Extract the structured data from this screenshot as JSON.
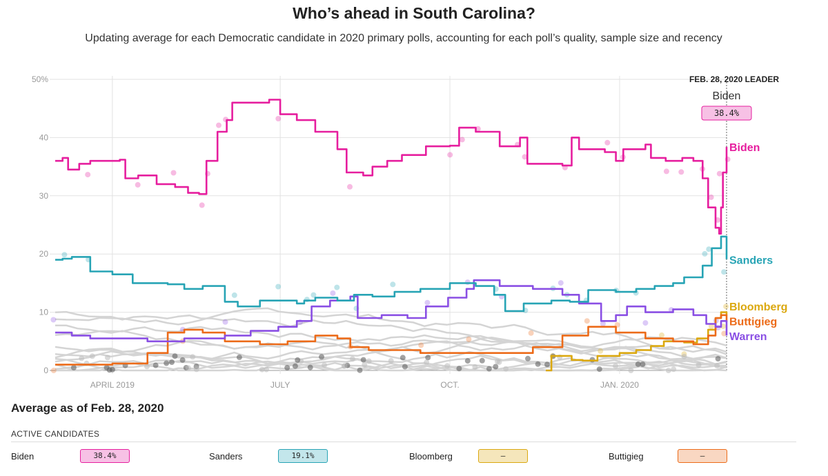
{
  "header": {
    "title": "Who’s ahead in South Carolina?",
    "subtitle": "Updating average for each Democratic candidate in 2020 primary polls, accounting for each poll’s quality, sample size and recency"
  },
  "chart_data": {
    "type": "line",
    "ylim": [
      0,
      50
    ],
    "y_ticks": [
      "50%",
      "40",
      "30",
      "20",
      "10",
      "0"
    ],
    "x_ticks": [
      "APRIL 2019",
      "JULY",
      "OCT.",
      "JAN. 2020"
    ],
    "x_range": [
      "2019-03-01",
      "2020-02-28"
    ],
    "leader": {
      "heading": "FEB. 28, 2020 LEADER",
      "name": "Biden",
      "value": "38.4%"
    },
    "series": [
      {
        "name": "Biden",
        "color": "#e61e9e",
        "points": [
          [
            "2019-03-01",
            36
          ],
          [
            "2019-03-05",
            36.5
          ],
          [
            "2019-03-08",
            34.5
          ],
          [
            "2019-03-14",
            35.5
          ],
          [
            "2019-03-20",
            36
          ],
          [
            "2019-04-05",
            36.2
          ],
          [
            "2019-04-08",
            33
          ],
          [
            "2019-04-15",
            33.5
          ],
          [
            "2019-04-25",
            32
          ],
          [
            "2019-05-05",
            31.5
          ],
          [
            "2019-05-12",
            30.5
          ],
          [
            "2019-05-18",
            30.3
          ],
          [
            "2019-05-22",
            36
          ],
          [
            "2019-05-28",
            41
          ],
          [
            "2019-06-02",
            43
          ],
          [
            "2019-06-05",
            46
          ],
          [
            "2019-06-25",
            46.5
          ],
          [
            "2019-07-01",
            44
          ],
          [
            "2019-07-10",
            43
          ],
          [
            "2019-07-20",
            41
          ],
          [
            "2019-08-01",
            38
          ],
          [
            "2019-08-06",
            34
          ],
          [
            "2019-08-15",
            33.5
          ],
          [
            "2019-08-20",
            35
          ],
          [
            "2019-08-28",
            36
          ],
          [
            "2019-09-05",
            37
          ],
          [
            "2019-09-18",
            38.5
          ],
          [
            "2019-10-01",
            38.6
          ],
          [
            "2019-10-06",
            41.7
          ],
          [
            "2019-10-15",
            41
          ],
          [
            "2019-10-28",
            38.5
          ],
          [
            "2019-11-08",
            40
          ],
          [
            "2019-11-12",
            35.5
          ],
          [
            "2019-11-26",
            35.5
          ],
          [
            "2019-12-01",
            35.2
          ],
          [
            "2019-12-06",
            40
          ],
          [
            "2019-12-10",
            38
          ],
          [
            "2019-12-24",
            37.5
          ],
          [
            "2019-12-30",
            36
          ],
          [
            "2020-01-03",
            38
          ],
          [
            "2020-01-15",
            38.8
          ],
          [
            "2020-01-18",
            36.5
          ],
          [
            "2020-01-26",
            36
          ],
          [
            "2020-02-04",
            36.5
          ],
          [
            "2020-02-10",
            36
          ],
          [
            "2020-02-15",
            33
          ],
          [
            "2020-02-18",
            28
          ],
          [
            "2020-02-22",
            24.5
          ],
          [
            "2020-02-24",
            23.5
          ],
          [
            "2020-02-25",
            28
          ],
          [
            "2020-02-26",
            34
          ],
          [
            "2020-02-28",
            38.4
          ]
        ]
      },
      {
        "name": "Sanders",
        "color": "#27a4b5",
        "points": [
          [
            "2019-03-01",
            19
          ],
          [
            "2019-03-05",
            19.2
          ],
          [
            "2019-03-10",
            19.5
          ],
          [
            "2019-03-20",
            17
          ],
          [
            "2019-04-01",
            16.5
          ],
          [
            "2019-04-12",
            15
          ],
          [
            "2019-05-01",
            14.8
          ],
          [
            "2019-05-10",
            14
          ],
          [
            "2019-05-20",
            14.5
          ],
          [
            "2019-06-01",
            11.8
          ],
          [
            "2019-06-08",
            11
          ],
          [
            "2019-06-20",
            12
          ],
          [
            "2019-07-01",
            12
          ],
          [
            "2019-07-10",
            11.5
          ],
          [
            "2019-07-14",
            12
          ],
          [
            "2019-07-20",
            12.5
          ],
          [
            "2019-08-01",
            12
          ],
          [
            "2019-08-10",
            13
          ],
          [
            "2019-08-20",
            12.7
          ],
          [
            "2019-09-01",
            13.5
          ],
          [
            "2019-09-15",
            14
          ],
          [
            "2019-10-01",
            15
          ],
          [
            "2019-10-15",
            14.5
          ],
          [
            "2019-10-25",
            13
          ],
          [
            "2019-10-31",
            10.2
          ],
          [
            "2019-11-10",
            11.5
          ],
          [
            "2019-11-25",
            12
          ],
          [
            "2019-12-05",
            11.8
          ],
          [
            "2019-12-15",
            13.8
          ],
          [
            "2019-12-30",
            13.5
          ],
          [
            "2020-01-10",
            14
          ],
          [
            "2020-01-20",
            14.5
          ],
          [
            "2020-01-30",
            15
          ],
          [
            "2020-02-05",
            16
          ],
          [
            "2020-02-15",
            18
          ],
          [
            "2020-02-20",
            21
          ],
          [
            "2020-02-25",
            23
          ],
          [
            "2020-02-28",
            19.1
          ]
        ]
      },
      {
        "name": "Warren",
        "color": "#8a4fe4",
        "points": [
          [
            "2019-03-01",
            6.5
          ],
          [
            "2019-03-10",
            6
          ],
          [
            "2019-03-20",
            5.5
          ],
          [
            "2019-04-10",
            5.5
          ],
          [
            "2019-04-20",
            5
          ],
          [
            "2019-05-10",
            5.5
          ],
          [
            "2019-06-01",
            6
          ],
          [
            "2019-06-15",
            6.8
          ],
          [
            "2019-06-30",
            7.5
          ],
          [
            "2019-07-10",
            8.5
          ],
          [
            "2019-07-18",
            11
          ],
          [
            "2019-07-28",
            12
          ],
          [
            "2019-08-08",
            12.7
          ],
          [
            "2019-08-12",
            9
          ],
          [
            "2019-08-25",
            9.5
          ],
          [
            "2019-09-08",
            9
          ],
          [
            "2019-09-18",
            11
          ],
          [
            "2019-09-30",
            12.5
          ],
          [
            "2019-10-10",
            14
          ],
          [
            "2019-10-14",
            15.5
          ],
          [
            "2019-10-28",
            14.5
          ],
          [
            "2019-11-15",
            14
          ],
          [
            "2019-12-01",
            13
          ],
          [
            "2019-12-10",
            11.5
          ],
          [
            "2019-12-22",
            8.5
          ],
          [
            "2019-12-30",
            9.5
          ],
          [
            "2020-01-05",
            11
          ],
          [
            "2020-01-15",
            10
          ],
          [
            "2020-01-30",
            10.5
          ],
          [
            "2020-02-10",
            9.5
          ],
          [
            "2020-02-17",
            8
          ],
          [
            "2020-02-22",
            7.5
          ],
          [
            "2020-02-25",
            8.5
          ],
          [
            "2020-02-28",
            6
          ]
        ]
      },
      {
        "name": "Buttigieg",
        "color": "#ec6b19",
        "points": [
          [
            "2019-03-01",
            1
          ],
          [
            "2019-04-01",
            1.2
          ],
          [
            "2019-04-20",
            3
          ],
          [
            "2019-05-01",
            6.5
          ],
          [
            "2019-05-10",
            7
          ],
          [
            "2019-05-20",
            6.5
          ],
          [
            "2019-06-01",
            5
          ],
          [
            "2019-06-20",
            4.5
          ],
          [
            "2019-07-05",
            5
          ],
          [
            "2019-07-20",
            6
          ],
          [
            "2019-08-01",
            5.5
          ],
          [
            "2019-08-08",
            4
          ],
          [
            "2019-08-18",
            3.5
          ],
          [
            "2019-09-15",
            3
          ],
          [
            "2019-10-10",
            3
          ],
          [
            "2019-10-30",
            3
          ],
          [
            "2019-11-15",
            4
          ],
          [
            "2019-12-01",
            6
          ],
          [
            "2019-12-15",
            7.5
          ],
          [
            "2019-12-30",
            6.5
          ],
          [
            "2020-01-15",
            5.5
          ],
          [
            "2020-01-30",
            5
          ],
          [
            "2020-02-10",
            4.5
          ],
          [
            "2020-02-18",
            6
          ],
          [
            "2020-02-22",
            9
          ],
          [
            "2020-02-25",
            9.5
          ],
          [
            "2020-02-28",
            8.3
          ]
        ]
      },
      {
        "name": "Bloomberg",
        "color": "#dba80f",
        "points": [
          [
            "2019-11-22",
            0
          ],
          [
            "2019-11-25",
            2.5
          ],
          [
            "2019-12-02",
            2.5
          ],
          [
            "2019-12-06",
            1.8
          ],
          [
            "2019-12-12",
            1.7
          ],
          [
            "2019-12-20",
            2.5
          ],
          [
            "2020-01-01",
            3
          ],
          [
            "2020-01-10",
            3.5
          ],
          [
            "2020-01-18",
            4.2
          ],
          [
            "2020-01-25",
            5
          ],
          [
            "2020-02-05",
            4.8
          ],
          [
            "2020-02-12",
            5.5
          ],
          [
            "2020-02-18",
            7
          ],
          [
            "2020-02-22",
            9
          ],
          [
            "2020-02-25",
            10
          ],
          [
            "2020-02-28",
            9.5
          ]
        ]
      }
    ]
  },
  "summary": {
    "title": "Average as of Feb. 28, 2020",
    "active_heading": "ACTIVE CANDIDATES",
    "candidates": [
      {
        "name": "Biden",
        "value": "38.4%",
        "fill": "#f7c1e5",
        "border": "#e61e9e"
      },
      {
        "name": "Sanders",
        "value": "19.1%",
        "fill": "#c3e6eb",
        "border": "#27a4b5"
      },
      {
        "name": "Bloomberg",
        "value": "–",
        "fill": "#f5e6bb",
        "border": "#dba80f"
      },
      {
        "name": "Buttigieg",
        "value": "–",
        "fill": "#f9d7c2",
        "border": "#ec6b19"
      }
    ]
  }
}
